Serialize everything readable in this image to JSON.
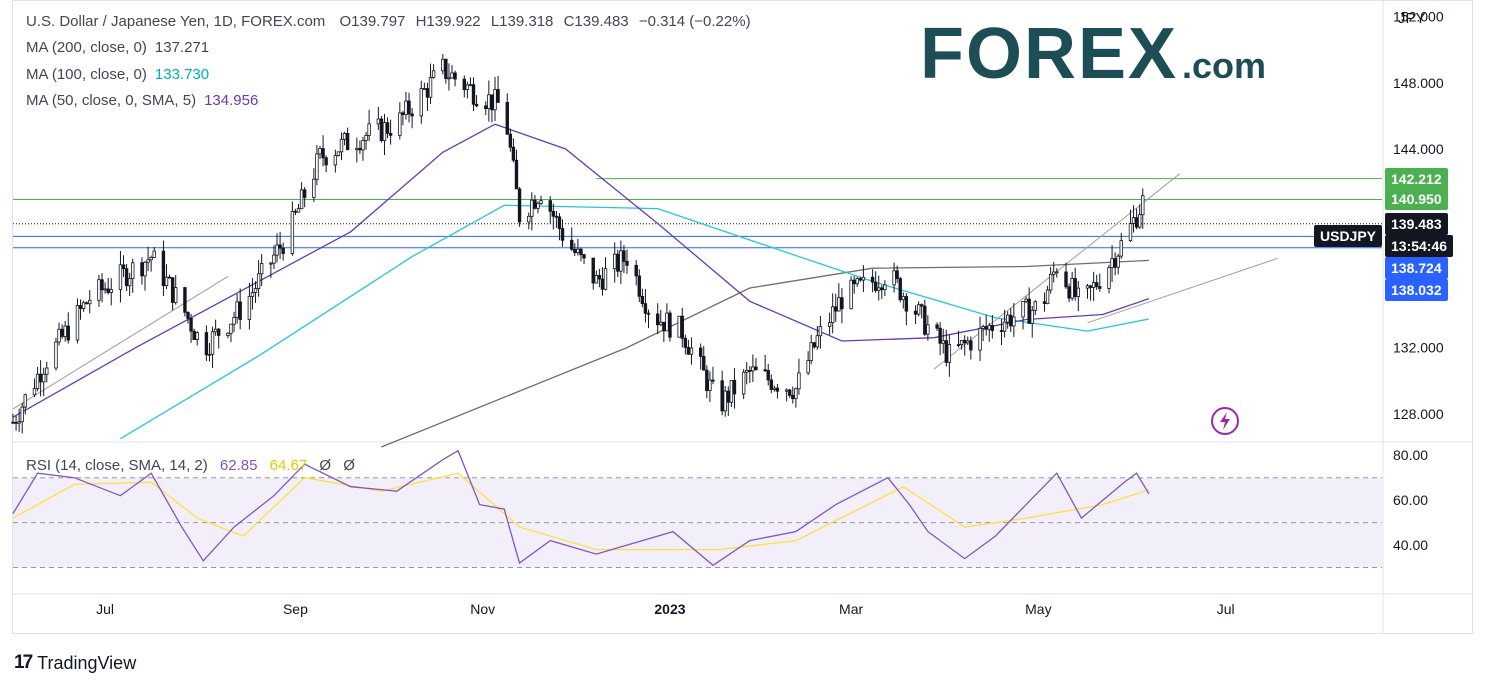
{
  "header": {
    "symbol_line": "U.S. Dollar / Japanese Yen, 1D, FOREX.com",
    "o_label": "O",
    "o_val": "139.797",
    "h_label": "H",
    "h_val": "139.922",
    "l_label": "L",
    "l_val": "139.318",
    "c_label": "C",
    "c_val": "139.483",
    "change": "−0.314 (−0.22%)"
  },
  "indicators": [
    {
      "label": "MA (200, close, 0)",
      "value": "137.271",
      "color": "#6e6e6e"
    },
    {
      "label": "MA (100, close, 0)",
      "value": "133.730",
      "color": "#26c6da"
    },
    {
      "label": "MA (50, close, 0, SMA, 5)",
      "value": "134.956",
      "color": "#673ab7"
    }
  ],
  "rsi_legend": {
    "label": "RSI (14, close, SMA, 14, 2)",
    "value1": "62.85",
    "value2": "64.67",
    "extra1": "Ø",
    "extra2": "Ø"
  },
  "brand": {
    "logo_main": "FOREX",
    "logo_suffix": ".com"
  },
  "footer": {
    "logo_mark": "17",
    "logo_text": "TradingView"
  },
  "axis": {
    "currency": "JPY"
  },
  "price_labels": [
    {
      "text": "142.212",
      "bg": "#4caf50"
    },
    {
      "text": "140.950",
      "bg": "#4caf50"
    },
    {
      "text": "139.483",
      "bg": "#131722"
    },
    {
      "text": "13:54:46",
      "bg": "#131722"
    },
    {
      "text": "138.724",
      "bg": "#2962ff"
    },
    {
      "text": "138.032",
      "bg": "#2962ff"
    }
  ],
  "symbol_pill": "USDJPY",
  "colors": {
    "up": "#131722",
    "down": "#131722",
    "ma200": "#6e6e6e",
    "ma100": "#26c6da",
    "ma50": "#673ab7",
    "rsi": "#7e57c2",
    "rsi_ma": "#ffeb3b",
    "rsi_band": "#f3effa",
    "green_line": "#4caf50",
    "blue_line": "#2962ff",
    "channel": "#9e9e9e"
  },
  "chart_data": {
    "type": "candlestick",
    "title": "U.S. Dollar / Japanese Yen, 1D, FOREX.com",
    "y_ticks": [
      "152.000",
      "148.000",
      "144.000",
      "132.000",
      "128.000"
    ],
    "y_tick_values": [
      152,
      148,
      144,
      132,
      128
    ],
    "rsi_ticks": [
      "80.00",
      "60.00",
      "40.00"
    ],
    "rsi_tick_values": [
      80,
      60,
      40
    ],
    "x_ticks": [
      "Jul",
      "Sep",
      "Nov",
      "2023",
      "Mar",
      "May",
      "Jul"
    ],
    "x_tick_days": [
      30,
      92,
      153,
      214,
      273,
      334,
      395
    ],
    "ylim": [
      126.3,
      153.0
    ],
    "rsi_ylim": [
      20,
      85
    ],
    "horizontal_levels": [
      {
        "value": 142.212,
        "color": "green"
      },
      {
        "value": 140.95,
        "color": "green"
      },
      {
        "value": 139.483,
        "style": "dotted"
      },
      {
        "value": 138.724,
        "color": "blue"
      },
      {
        "value": 138.032,
        "color": "blue"
      }
    ],
    "key_points": [
      {
        "day": 0,
        "close": 127.5
      },
      {
        "day": 10,
        "close": 131.0
      },
      {
        "day": 25,
        "close": 135.0
      },
      {
        "day": 45,
        "close": 137.5
      },
      {
        "day": 55,
        "close": 134.5
      },
      {
        "day": 62,
        "close": 132.0
      },
      {
        "day": 75,
        "close": 134.5
      },
      {
        "day": 90,
        "close": 139.0
      },
      {
        "day": 100,
        "close": 143.5
      },
      {
        "day": 110,
        "close": 144.5
      },
      {
        "day": 125,
        "close": 145.5
      },
      {
        "day": 140,
        "close": 148.8
      },
      {
        "day": 150,
        "close": 147.5
      },
      {
        "day": 160,
        "close": 146.5
      },
      {
        "day": 165,
        "close": 140.0
      },
      {
        "day": 172,
        "close": 141.5
      },
      {
        "day": 180,
        "close": 138.5
      },
      {
        "day": 190,
        "close": 136.0
      },
      {
        "day": 200,
        "close": 137.5
      },
      {
        "day": 208,
        "close": 134.0
      },
      {
        "day": 218,
        "close": 133.0
      },
      {
        "day": 230,
        "close": 128.5
      },
      {
        "day": 240,
        "close": 130.5
      },
      {
        "day": 255,
        "close": 129.5
      },
      {
        "day": 262,
        "close": 132.5
      },
      {
        "day": 270,
        "close": 135.0
      },
      {
        "day": 285,
        "close": 136.5
      },
      {
        "day": 295,
        "close": 134.0
      },
      {
        "day": 305,
        "close": 131.5
      },
      {
        "day": 320,
        "close": 133.5
      },
      {
        "day": 335,
        "close": 134.5
      },
      {
        "day": 340,
        "close": 137.0
      },
      {
        "day": 348,
        "close": 134.5
      },
      {
        "day": 355,
        "close": 136.5
      },
      {
        "day": 362,
        "close": 138.5
      },
      {
        "day": 368,
        "close": 140.8
      },
      {
        "day": 370,
        "close": 139.48
      }
    ],
    "ma200_points": [
      {
        "day": 120,
        "value": 126.0
      },
      {
        "day": 200,
        "value": 132.0
      },
      {
        "day": 240,
        "value": 135.6
      },
      {
        "day": 280,
        "value": 136.8
      },
      {
        "day": 330,
        "value": 136.9
      },
      {
        "day": 370,
        "value": 137.27
      }
    ],
    "ma100_points": [
      {
        "day": 35,
        "value": 126.5
      },
      {
        "day": 80,
        "value": 131.5
      },
      {
        "day": 130,
        "value": 137.5
      },
      {
        "day": 160,
        "value": 140.6
      },
      {
        "day": 210,
        "value": 140.4
      },
      {
        "day": 240,
        "value": 138.5
      },
      {
        "day": 280,
        "value": 136.0
      },
      {
        "day": 320,
        "value": 133.8
      },
      {
        "day": 350,
        "value": 133.0
      },
      {
        "day": 370,
        "value": 133.73
      }
    ],
    "ma50_points": [
      {
        "day": 0,
        "value": 127.8
      },
      {
        "day": 40,
        "value": 132.0
      },
      {
        "day": 80,
        "value": 136.0
      },
      {
        "day": 110,
        "value": 139.0
      },
      {
        "day": 140,
        "value": 143.8
      },
      {
        "day": 157,
        "value": 145.5
      },
      {
        "day": 180,
        "value": 144.0
      },
      {
        "day": 210,
        "value": 139.5
      },
      {
        "day": 240,
        "value": 134.8
      },
      {
        "day": 270,
        "value": 132.4
      },
      {
        "day": 300,
        "value": 132.6
      },
      {
        "day": 330,
        "value": 133.7
      },
      {
        "day": 355,
        "value": 134.0
      },
      {
        "day": 370,
        "value": 134.96
      }
    ],
    "channel_lines": [
      {
        "start": {
          "day": 0,
          "value": 128.3
        },
        "end": {
          "day": 70,
          "value": 136.3
        }
      },
      {
        "start": {
          "day": 300,
          "value": 130.7
        },
        "end": {
          "day": 380,
          "value": 142.5
        }
      },
      {
        "start": {
          "day": 350,
          "value": 133.5
        },
        "end": {
          "day": 412,
          "value": 137.4
        }
      }
    ],
    "rsi_points": [
      {
        "day": 0,
        "value": 54
      },
      {
        "day": 8,
        "value": 72
      },
      {
        "day": 20,
        "value": 70
      },
      {
        "day": 35,
        "value": 62
      },
      {
        "day": 45,
        "value": 72
      },
      {
        "day": 55,
        "value": 48
      },
      {
        "day": 62,
        "value": 33
      },
      {
        "day": 72,
        "value": 48
      },
      {
        "day": 85,
        "value": 62
      },
      {
        "day": 95,
        "value": 76
      },
      {
        "day": 110,
        "value": 66
      },
      {
        "day": 125,
        "value": 64
      },
      {
        "day": 140,
        "value": 78
      },
      {
        "day": 145,
        "value": 82
      },
      {
        "day": 152,
        "value": 58
      },
      {
        "day": 160,
        "value": 56
      },
      {
        "day": 165,
        "value": 32
      },
      {
        "day": 175,
        "value": 42
      },
      {
        "day": 190,
        "value": 36
      },
      {
        "day": 205,
        "value": 42
      },
      {
        "day": 215,
        "value": 46
      },
      {
        "day": 228,
        "value": 31
      },
      {
        "day": 240,
        "value": 42
      },
      {
        "day": 255,
        "value": 46
      },
      {
        "day": 268,
        "value": 58
      },
      {
        "day": 285,
        "value": 70
      },
      {
        "day": 292,
        "value": 58
      },
      {
        "day": 298,
        "value": 46
      },
      {
        "day": 310,
        "value": 34
      },
      {
        "day": 320,
        "value": 44
      },
      {
        "day": 330,
        "value": 58
      },
      {
        "day": 340,
        "value": 72
      },
      {
        "day": 348,
        "value": 52
      },
      {
        "day": 355,
        "value": 60
      },
      {
        "day": 362,
        "value": 68
      },
      {
        "day": 366,
        "value": 72
      },
      {
        "day": 370,
        "value": 62.85
      }
    ],
    "rsi_ma_points": [
      {
        "day": 0,
        "value": 52
      },
      {
        "day": 20,
        "value": 67
      },
      {
        "day": 45,
        "value": 68
      },
      {
        "day": 60,
        "value": 52
      },
      {
        "day": 75,
        "value": 44
      },
      {
        "day": 95,
        "value": 70
      },
      {
        "day": 120,
        "value": 64
      },
      {
        "day": 145,
        "value": 72
      },
      {
        "day": 165,
        "value": 48
      },
      {
        "day": 190,
        "value": 38
      },
      {
        "day": 230,
        "value": 38
      },
      {
        "day": 255,
        "value": 42
      },
      {
        "day": 290,
        "value": 66
      },
      {
        "day": 310,
        "value": 48
      },
      {
        "day": 330,
        "value": 52
      },
      {
        "day": 355,
        "value": 58
      },
      {
        "day": 370,
        "value": 64.67
      }
    ],
    "rsi_band": [
      30,
      70
    ],
    "rsi_midline": 50,
    "grid": false
  }
}
